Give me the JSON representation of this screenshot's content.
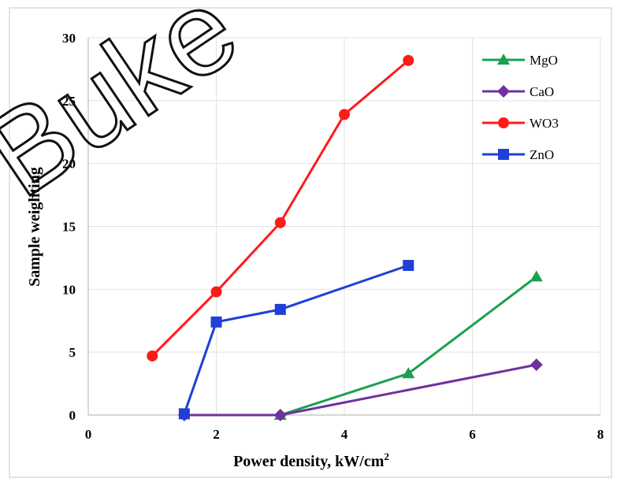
{
  "chart_data": {
    "type": "line",
    "title": "",
    "xlabel": "Power density, kW/cm",
    "xlabel_superscript": "2",
    "ylabel": "Sample weighting",
    "xlim": [
      0,
      8
    ],
    "ylim": [
      0,
      30
    ],
    "xticks": [
      0,
      2,
      4,
      6,
      8
    ],
    "yticks": [
      0,
      5,
      10,
      15,
      20,
      25,
      30
    ],
    "grid": true,
    "legend_position": "top-right",
    "series": [
      {
        "name": "MgO",
        "color": "#1aa050",
        "marker": "triangle",
        "x": [
          3,
          5,
          7
        ],
        "y": [
          0,
          3.3,
          11
        ]
      },
      {
        "name": "CaO",
        "color": "#7030a0",
        "marker": "diamond",
        "x": [
          1.5,
          3,
          7
        ],
        "y": [
          0,
          0,
          4
        ]
      },
      {
        "name": "WO3",
        "color": "#ff1a1a",
        "marker": "circle",
        "x": [
          1,
          2,
          3,
          4,
          5
        ],
        "y": [
          4.7,
          9.8,
          15.3,
          23.9,
          28.2
        ]
      },
      {
        "name": "ZnO",
        "color": "#1f3fd6",
        "marker": "square",
        "x": [
          1.5,
          2,
          3,
          5
        ],
        "y": [
          0.1,
          7.4,
          8.4,
          11.9
        ]
      }
    ]
  },
  "watermark": "Buke"
}
